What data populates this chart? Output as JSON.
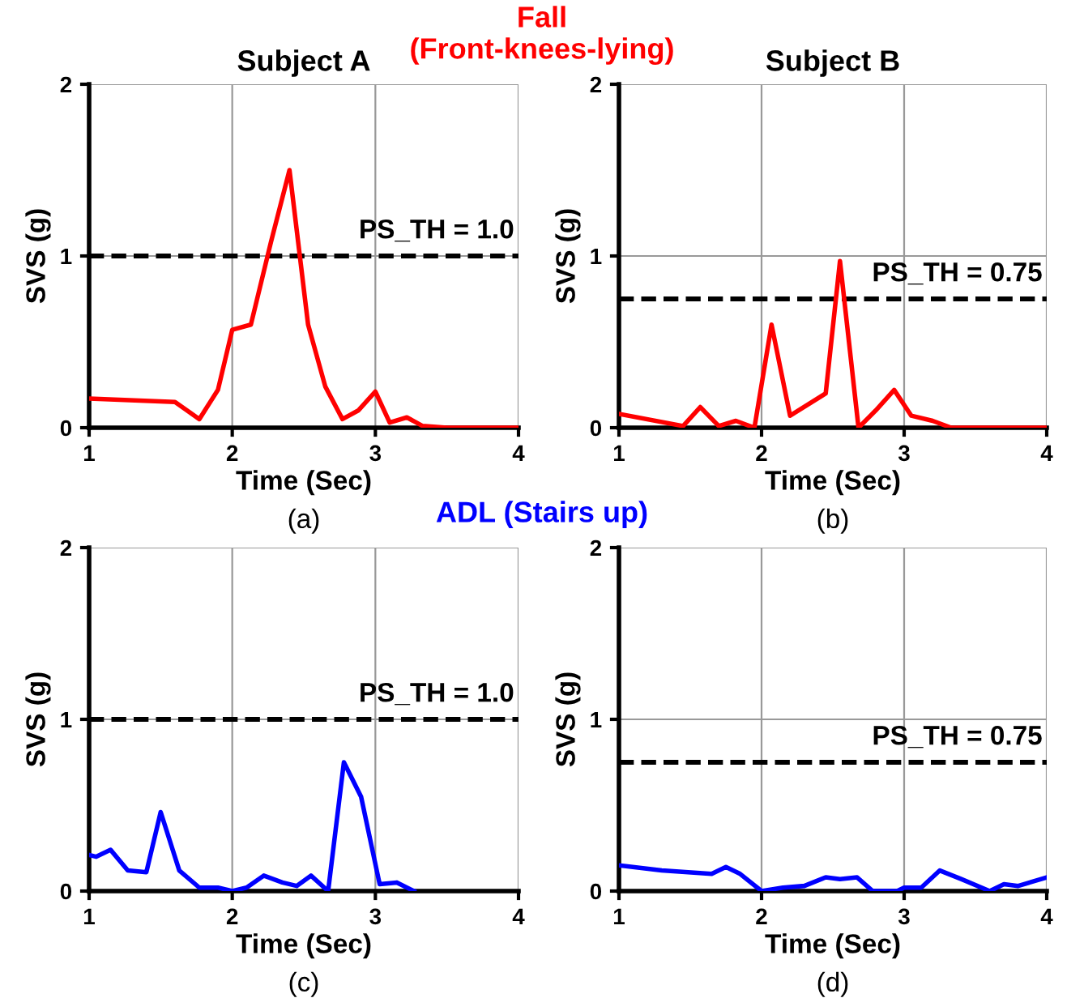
{
  "chart_data": [
    {
      "type": "line",
      "title": "Subject A",
      "subtitle": "Fall\n(Front-knees-lying)",
      "xlabel": "Time (Sec)",
      "ylabel": "SVS (g)",
      "xlim": [
        1,
        4
      ],
      "ylim": [
        0,
        2
      ],
      "xticks": [
        1,
        2,
        3,
        4
      ],
      "yticks": [
        0,
        1,
        2
      ],
      "grid": true,
      "legend": false,
      "series": [
        {
          "color": "#ff0000",
          "x": [
            1,
            1.6,
            1.77,
            1.9,
            2,
            2.13,
            2.27,
            2.4,
            2.53,
            2.65,
            2.77,
            2.88,
            3.0,
            3.1,
            3.22,
            3.33,
            3.5,
            4
          ],
          "values": [
            0.17,
            0.15,
            0.05,
            0.22,
            0.57,
            0.6,
            1.08,
            1.5,
            0.6,
            0.24,
            0.05,
            0.1,
            0.21,
            0.03,
            0.06,
            0.01,
            0.0,
            0.0
          ]
        }
      ],
      "ref_lines": [
        {
          "axis": "y",
          "value": 1.0,
          "label": "PS_TH = 1.0",
          "color": "#000000",
          "line_style": "dashed"
        }
      ],
      "annotations": [
        "(a)"
      ]
    },
    {
      "type": "line",
      "title": "Subject B",
      "xlabel": "Time (Sec)",
      "ylabel": "SVS (g)",
      "xlim": [
        1,
        4
      ],
      "ylim": [
        0,
        2
      ],
      "xticks": [
        1,
        2,
        3,
        4
      ],
      "yticks": [
        0,
        1,
        2
      ],
      "grid": true,
      "legend": false,
      "series": [
        {
          "color": "#ff0000",
          "x": [
            1,
            1.45,
            1.57,
            1.7,
            1.82,
            1.95,
            2.07,
            2.2,
            2.45,
            2.55,
            2.68,
            2.8,
            2.93,
            3.05,
            3.2,
            3.33,
            4
          ],
          "values": [
            0.08,
            0.01,
            0.12,
            0.01,
            0.04,
            0.0,
            0.6,
            0.07,
            0.2,
            0.97,
            0.0,
            0.1,
            0.22,
            0.07,
            0.04,
            0.0,
            0.0
          ]
        }
      ],
      "ref_lines": [
        {
          "axis": "y",
          "value": 0.75,
          "label": "PS_TH = 0.75",
          "color": "#000000",
          "line_style": "dashed"
        }
      ],
      "annotations": [
        "(b)"
      ]
    },
    {
      "type": "line",
      "subtitle": "ADL (Stairs up)",
      "xlabel": "Time (Sec)",
      "ylabel": "SVS (g)",
      "xlim": [
        1,
        4
      ],
      "ylim": [
        0,
        2
      ],
      "xticks": [
        1,
        2,
        3,
        4
      ],
      "yticks": [
        0,
        1,
        2
      ],
      "grid": true,
      "legend": false,
      "series": [
        {
          "color": "#0000ff",
          "x": [
            1,
            1.05,
            1.15,
            1.27,
            1.4,
            1.5,
            1.63,
            1.77,
            1.9,
            2.0,
            2.1,
            2.22,
            2.35,
            2.45,
            2.55,
            2.67,
            2.78,
            2.9,
            3.03,
            3.15,
            3.27
          ],
          "values": [
            0.21,
            0.2,
            0.24,
            0.12,
            0.11,
            0.46,
            0.12,
            0.02,
            0.02,
            0.0,
            0.02,
            0.09,
            0.05,
            0.03,
            0.09,
            0.0,
            0.75,
            0.55,
            0.04,
            0.05,
            0.0
          ]
        }
      ],
      "ref_lines": [
        {
          "axis": "y",
          "value": 1.0,
          "label": "PS_TH = 1.0",
          "color": "#000000",
          "line_style": "dashed"
        }
      ],
      "annotations": [
        "(c)"
      ]
    },
    {
      "type": "line",
      "xlabel": "Time (Sec)",
      "ylabel": "SVS (g)",
      "xlim": [
        1,
        4
      ],
      "ylim": [
        0,
        2
      ],
      "xticks": [
        1,
        2,
        3,
        4
      ],
      "yticks": [
        0,
        1,
        2
      ],
      "grid": true,
      "legend": false,
      "series": [
        {
          "color": "#0000ff",
          "x": [
            1,
            1.3,
            1.65,
            1.75,
            1.85,
            2.0,
            2.15,
            2.3,
            2.45,
            2.55,
            2.67,
            2.78,
            2.95,
            3.0,
            3.12,
            3.25,
            3.4,
            3.6,
            3.7,
            3.8,
            4
          ],
          "values": [
            0.15,
            0.12,
            0.1,
            0.14,
            0.1,
            0.0,
            0.02,
            0.03,
            0.08,
            0.07,
            0.08,
            0.0,
            0.0,
            0.02,
            0.02,
            0.12,
            0.07,
            0.0,
            0.04,
            0.03,
            0.08
          ]
        }
      ],
      "ref_lines": [
        {
          "axis": "y",
          "value": 0.75,
          "label": "PS_TH = 0.75",
          "color": "#000000",
          "line_style": "dashed"
        }
      ],
      "annotations": [
        "(d)"
      ]
    }
  ]
}
